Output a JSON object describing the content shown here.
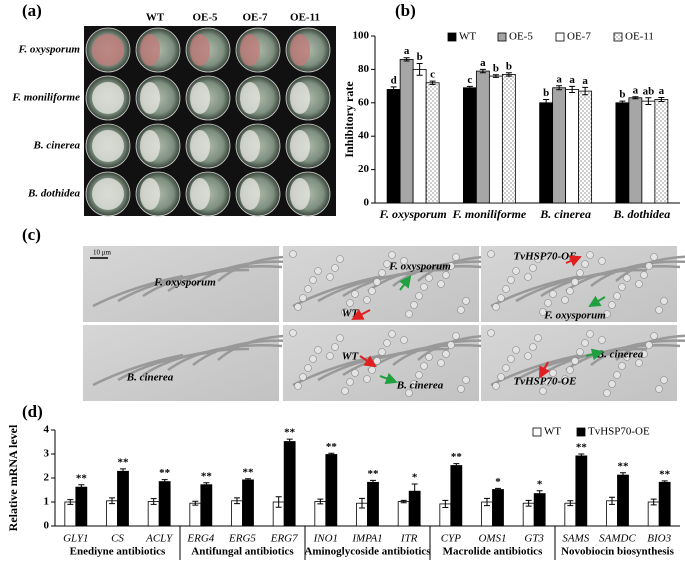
{
  "panel_a": {
    "label": "(a)",
    "columns": [
      "WT",
      "OE-5",
      "OE-7",
      "OE-11"
    ],
    "rows": [
      "F. oxysporum",
      "F. moniliforme",
      "B. cinerea",
      "B. dothidea"
    ]
  },
  "panel_c": {
    "label": "(c)",
    "scale_bar": "10 μm",
    "images": [
      [
        "F. oxysporum"
      ],
      [
        "F. oxysporum",
        "WT"
      ],
      [
        "TvHSP70-OE",
        "F. oxysporum"
      ],
      [
        "B. cinerea"
      ],
      [
        "WT",
        "B. cinerea"
      ],
      [
        "B. cinerea",
        "TvHSP70-OE"
      ]
    ]
  },
  "chart_data": [
    {
      "type": "bar",
      "panel_label": "(b)",
      "y_label": "Inhibitory rate",
      "categories": [
        "F. oxysporum",
        "F. moniliforme",
        "B. cinerea",
        "B. dothidea"
      ],
      "series": [
        {
          "name": "WT",
          "color": "#000000",
          "values": [
            68,
            69,
            60,
            60
          ],
          "errors": [
            1.5,
            0.8,
            2,
            1
          ],
          "annotations": [
            "d",
            "c",
            "b",
            "b"
          ]
        },
        {
          "name": "OE-5",
          "color": "#a6a6a6",
          "values": [
            86,
            79,
            69,
            63
          ],
          "errors": [
            1,
            1,
            1.2,
            0.6
          ],
          "annotations": [
            "a",
            "a",
            "a",
            "a"
          ]
        },
        {
          "name": "OE-7",
          "color": "#ffffff",
          "values": [
            80,
            76,
            68,
            61
          ],
          "errors": [
            3.5,
            0.8,
            1.8,
            2
          ],
          "annotations": [
            "b",
            "b",
            "a",
            "ab"
          ]
        },
        {
          "name": "OE-11",
          "color": "#ffffff",
          "pattern": "dots",
          "values": [
            72,
            77,
            67,
            62
          ],
          "errors": [
            1,
            1,
            2.2,
            1.2
          ],
          "annotations": [
            "c",
            "b",
            "a",
            "a"
          ]
        }
      ],
      "ylim": [
        0,
        100
      ],
      "yticks": [
        0,
        20,
        40,
        60,
        80,
        100
      ],
      "grid": false
    },
    {
      "type": "bar",
      "panel_label": "(d)",
      "y_label": "Relative mRNA level",
      "category_groups": [
        {
          "name": "Enediyne antibiotics",
          "categories": [
            "GLY1",
            "CS",
            "ACLY"
          ]
        },
        {
          "name": "Antifungal antibiotics",
          "categories": [
            "ERG4",
            "ERG5",
            "ERG7"
          ]
        },
        {
          "name": "Aminoglycoside antibiotics",
          "categories": [
            "INO1",
            "IMPA1",
            "ITR"
          ]
        },
        {
          "name": "Macrolide antibiotics",
          "categories": [
            "CYP",
            "OMS1",
            "GT3"
          ]
        },
        {
          "name": "Novobiocin biosynthesis",
          "categories": [
            "SAMS",
            "SAMDC",
            "BIO3"
          ]
        }
      ],
      "series": [
        {
          "name": "WT",
          "color": "#ffffff",
          "values": [
            1.0,
            1.05,
            1.02,
            0.95,
            1.05,
            1.0,
            1.02,
            0.95,
            1.02,
            0.92,
            1.0,
            0.95,
            0.95,
            1.05,
            1.0
          ],
          "errors": [
            0.1,
            0.12,
            0.12,
            0.08,
            0.12,
            0.22,
            0.1,
            0.2,
            0.05,
            0.15,
            0.15,
            0.12,
            0.1,
            0.15,
            0.12
          ]
        },
        {
          "name": "TvHSP70-OE",
          "color": "#000000",
          "values": [
            1.62,
            2.28,
            1.85,
            1.72,
            1.92,
            3.52,
            2.98,
            1.82,
            1.45,
            2.52,
            1.52,
            1.35,
            2.92,
            2.12,
            1.82
          ],
          "errors": [
            0.1,
            0.1,
            0.08,
            0.08,
            0.05,
            0.1,
            0.05,
            0.08,
            0.3,
            0.08,
            0.05,
            0.12,
            0.08,
            0.1,
            0.06
          ],
          "annotations": [
            "**",
            "**",
            "**",
            "**",
            "**",
            "**",
            "**",
            "**",
            "*",
            "**",
            "*",
            "*",
            "**",
            "**",
            "**"
          ]
        }
      ],
      "ylim": [
        0,
        4
      ],
      "yticks": [
        0,
        1,
        2,
        3,
        4
      ],
      "grid": false
    }
  ]
}
